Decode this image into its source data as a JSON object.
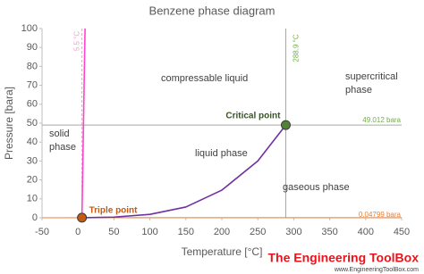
{
  "chart_data": {
    "type": "line",
    "title": "Benzene phase diagram",
    "x_label": "Temperature [°C]",
    "y_label": "Pressure [bara]",
    "xlim": [
      -50,
      450
    ],
    "xticks": [
      -50,
      0,
      50,
      100,
      150,
      200,
      250,
      300,
      350,
      400,
      450
    ],
    "ylim": [
      0,
      100
    ],
    "yticks": [
      0,
      10,
      20,
      30,
      40,
      50,
      60,
      70,
      80,
      90,
      100
    ],
    "series": [
      {
        "color": "#f4b183",
        "x": [
          -50,
          5.5
        ],
        "values": [
          0.0014,
          0.04799
        ]
      },
      {
        "color": "#ff44cc",
        "x": [
          5.5,
          9.8
        ],
        "values": [
          0.04799,
          100
        ]
      },
      {
        "color": "#7030a0",
        "x": [
          5.5,
          50,
          100,
          150,
          200,
          250,
          288.9
        ],
        "values": [
          0.04799,
          0.36,
          1.8,
          5.7,
          14.6,
          30,
          49.012
        ]
      }
    ],
    "reference_lines": [
      {
        "axis": "x",
        "value": 288.9,
        "label": "288.9 °C",
        "color": "#70ad47"
      },
      {
        "axis": "x",
        "value": 5.5,
        "label": "5.5 °C",
        "color": "#ff99cc"
      },
      {
        "axis": "y",
        "value": 49.012,
        "label": "49.012 bara",
        "color": "#70ad47"
      },
      {
        "axis": "y",
        "value": 0.04799,
        "label": "0.04799 bara",
        "color": "#ed7d31"
      }
    ],
    "points": [
      {
        "label": "Triple point",
        "x": 5.5,
        "y": 0.04799,
        "color": "#c55a11"
      },
      {
        "label": "Critical point",
        "x": 288.9,
        "y": 49.012,
        "color": "#548235"
      }
    ],
    "annotations": [
      "compressable liquid",
      "supercritical phase",
      "solid phase",
      "liquid phase",
      "gaseous phase"
    ]
  },
  "branding": {
    "name": "The Engineering ToolBox",
    "url": "www.EngineeringToolBox.com"
  }
}
